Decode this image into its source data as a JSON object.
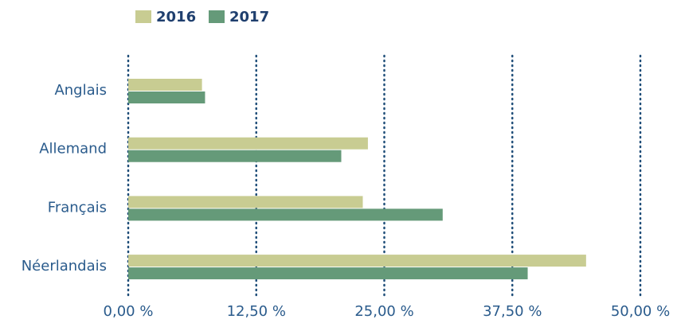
{
  "chart_data": {
    "type": "barh",
    "categories": [
      "Anglais",
      "Allemand",
      "Français",
      "Néerlandais"
    ],
    "series": [
      {
        "name": "2016",
        "color": "#c8cc92",
        "values": [
          7.2,
          23.4,
          22.9,
          44.7
        ]
      },
      {
        "name": "2017",
        "color": "#659a79",
        "values": [
          7.5,
          20.8,
          30.7,
          39.0
        ]
      }
    ],
    "xlim": [
      0,
      50
    ],
    "xticks": [
      {
        "value": 0,
        "label": "0,00 %"
      },
      {
        "value": 12.5,
        "label": "12,50 %"
      },
      {
        "value": 25,
        "label": "25,00 %"
      },
      {
        "value": 37.5,
        "label": "37,50 %"
      },
      {
        "value": 50,
        "label": "50,00 %"
      }
    ],
    "grid": true,
    "legend": "top"
  }
}
